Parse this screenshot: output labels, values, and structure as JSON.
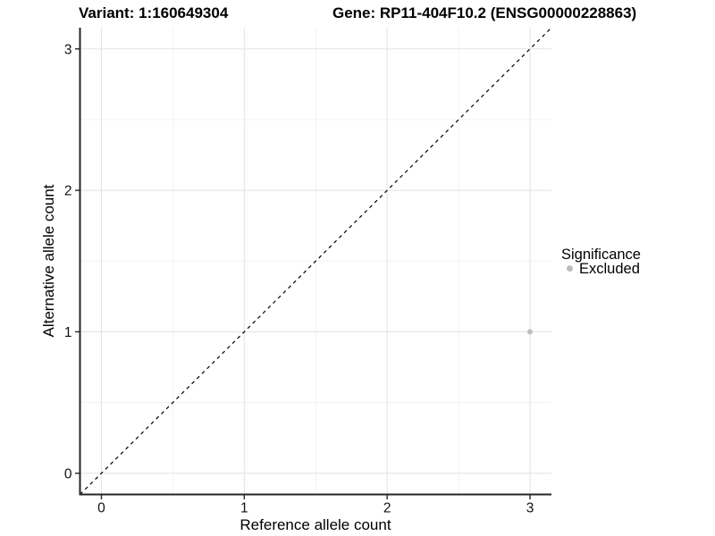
{
  "titles": {
    "variant": "Variant: 1:160649304",
    "gene": "Gene: RP11-404F10.2 (ENSG00000228863)"
  },
  "chart_data": {
    "type": "scatter",
    "title_left": "Variant: 1:160649304",
    "title_right": "Gene: RP11-404F10.2 (ENSG00000228863)",
    "xlabel": "Reference allele count",
    "ylabel": "Alternative allele count",
    "xlim": [
      -0.15,
      3.15
    ],
    "ylim": [
      -0.15,
      3.15
    ],
    "x_ticks": [
      0,
      1,
      2,
      3
    ],
    "y_ticks": [
      0,
      1,
      2,
      3
    ],
    "x_minor_ticks": [
      0.5,
      1.5,
      2.5
    ],
    "y_minor_ticks": [
      0.5,
      1.5,
      2.5
    ],
    "grid": "major and minor, light gray, on white panel",
    "identity_line": {
      "style": "dashed",
      "color": "#000000",
      "from": [
        -0.15,
        -0.15
      ],
      "to": [
        3.15,
        3.15
      ]
    },
    "points": [
      {
        "x": 3,
        "y": 1,
        "series": "Excluded",
        "color": "#bdbdbd"
      }
    ],
    "legend": {
      "title": "Significance",
      "position": "right",
      "entries": [
        {
          "label": "Excluded",
          "color": "#bdbdbd"
        }
      ]
    }
  },
  "colors": {
    "background": "#ffffff",
    "axis_line": "#262626",
    "grid_major": "#e4e4e4",
    "grid_minor": "#f1f1f1",
    "point_excluded": "#bdbdbd",
    "text": "#000000"
  }
}
